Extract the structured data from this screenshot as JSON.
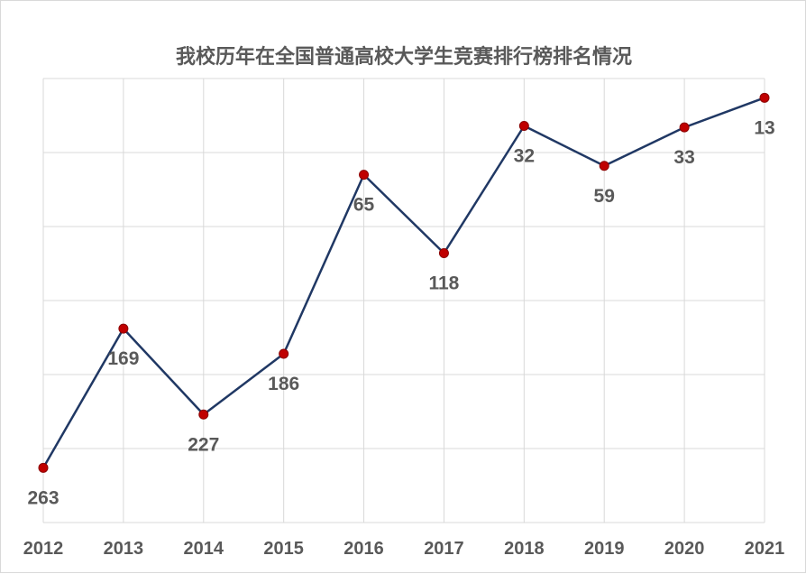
{
  "chart_data": {
    "type": "line",
    "title": "我校历年在全国普通高校大学生竞赛排行榜排名情况",
    "x": [
      "2012",
      "2013",
      "2014",
      "2015",
      "2016",
      "2017",
      "2018",
      "2019",
      "2020",
      "2021"
    ],
    "series": [
      {
        "values": [
          263,
          169,
          227,
          186,
          65,
          118,
          32,
          59,
          33,
          13
        ]
      }
    ],
    "y_reversed": true,
    "yaxis_tick_labels_shown": false,
    "grid": true,
    "legend": "none",
    "colors": {
      "line": "#203864",
      "marker": "#c00000",
      "grid": "#d9d9d9",
      "text": "#595959"
    }
  }
}
